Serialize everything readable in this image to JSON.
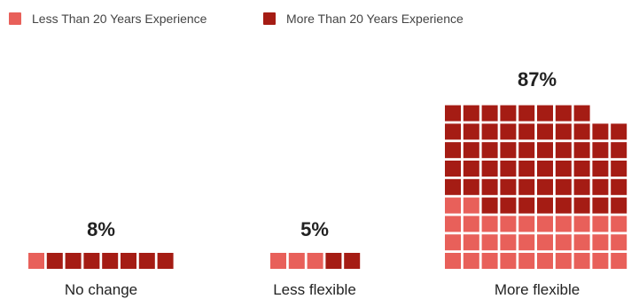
{
  "chart_data": {
    "type": "bar",
    "categories": [
      "No change",
      "Less flexible",
      "More flexible"
    ],
    "totals_label": [
      "8%",
      "5%",
      "87%"
    ],
    "series": [
      {
        "name": "Less Than 20 Years Experience",
        "color": "#e8605a",
        "squares": [
          1,
          3,
          32
        ]
      },
      {
        "name": "More Than 20 Years Experience",
        "color": "#a51c14",
        "squares": [
          7,
          2,
          56
        ]
      }
    ],
    "legend_placement": "top-left",
    "grid": false
  }
}
